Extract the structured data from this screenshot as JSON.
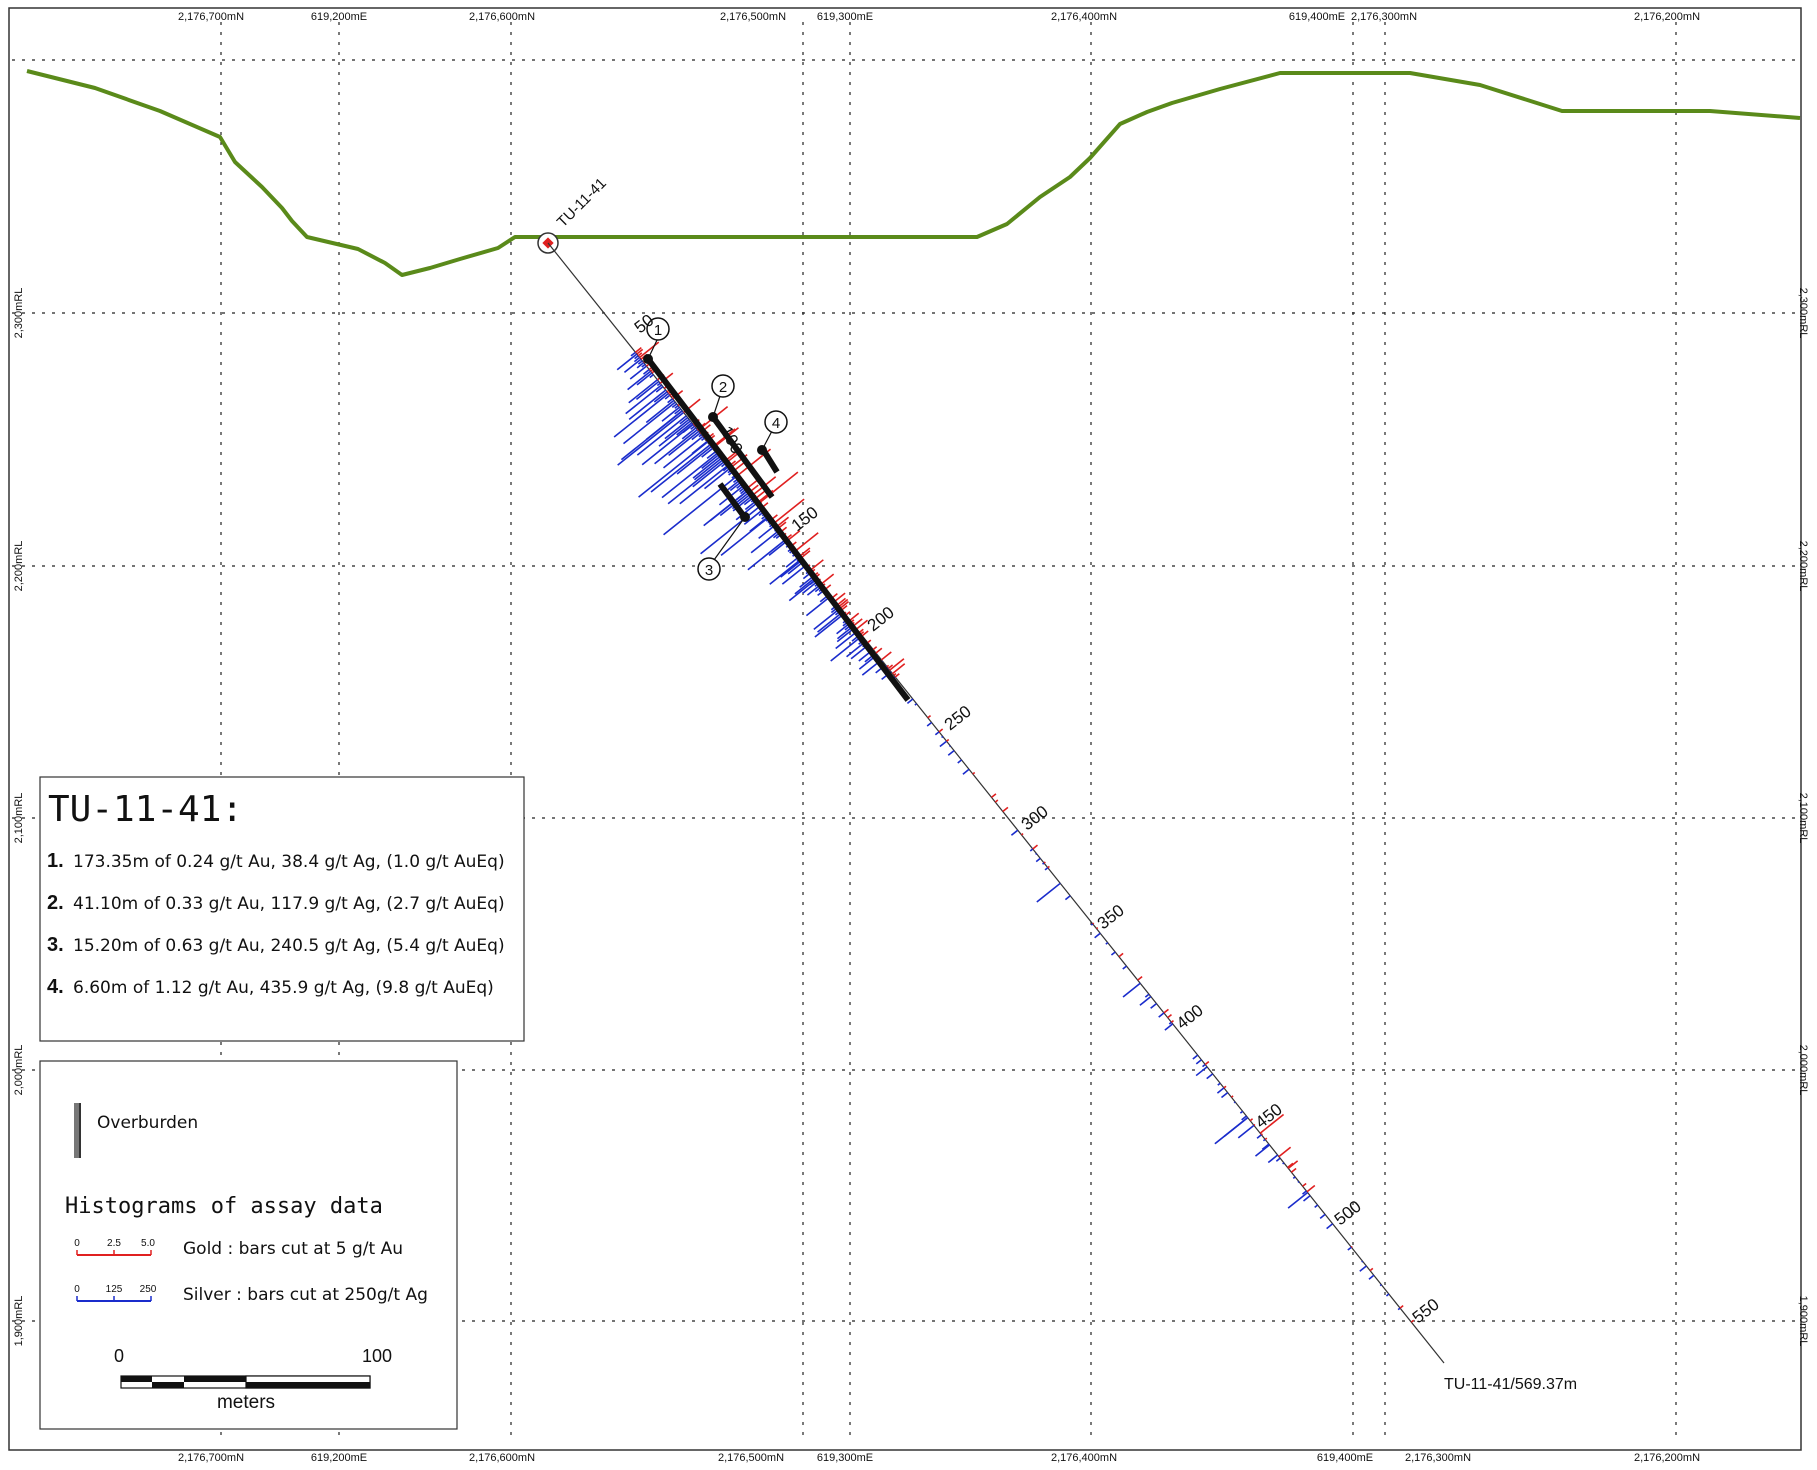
{
  "grid": {
    "top_labels": [
      "2,176,700mN",
      "619,200mE",
      "2,176,600mN",
      "2,176,500mN",
      "619,300mE",
      "2,176,400mN",
      "619,400mE",
      "2,176,300mN",
      "2,176,200mN"
    ],
    "bottom_labels": [
      "2,176,700mN",
      "619,200mE",
      "2,176,600mN",
      "2,176,500mN",
      "619,300mE",
      "2,176,400mN",
      "619,400mE",
      "2,176,300mN",
      "2,176,200mN"
    ],
    "rl_labels": [
      "2,300mRL",
      "2,200mRL",
      "2,100mRL",
      "2,000mRL",
      "1,900mRL"
    ]
  },
  "drillhole": {
    "collar_label": "TU-11-41",
    "end_label": "TU-11-41/569.37m",
    "depth_labels": [
      "50",
      "100",
      "150",
      "200",
      "250",
      "300",
      "350",
      "400",
      "450",
      "500",
      "550"
    ],
    "intercept_markers": [
      "1",
      "2",
      "3",
      "4"
    ]
  },
  "results_panel": {
    "title": "TU-11-41:",
    "rows": [
      {
        "num": "1.",
        "text": "173.35m of 0.24 g/t Au, 38.4 g/t Ag, (1.0 g/t AuEq)"
      },
      {
        "num": "2.",
        "text": "41.10m of 0.33 g/t Au, 117.9 g/t Ag, (2.7 g/t AuEq)"
      },
      {
        "num": "3.",
        "text": "15.20m of 0.63 g/t Au, 240.5 g/t Ag, (5.4 g/t AuEq)"
      },
      {
        "num": "4.",
        "text": "6.60m of 1.12 g/t Au, 435.9 g/t Ag, (9.8 g/t AuEq)"
      }
    ]
  },
  "legend": {
    "overburden_label": "Overburden",
    "histogram_title": "Histograms of assay data",
    "gold_scale": [
      "0",
      "2.5",
      "5.0"
    ],
    "gold_label": "Gold :  bars cut at 5 g/t Au",
    "silver_scale": [
      "0",
      "125",
      "250"
    ],
    "silver_label": "Silver : bars cut at 250g/t Ag",
    "scalebar_min": "0",
    "scalebar_max": "100",
    "scalebar_unit": "meters"
  },
  "colors": {
    "topography": "#5a8a1a",
    "gold": "#e02020",
    "silver": "#1a2ccc",
    "intercept": "#111111",
    "overburden": "#777777"
  }
}
